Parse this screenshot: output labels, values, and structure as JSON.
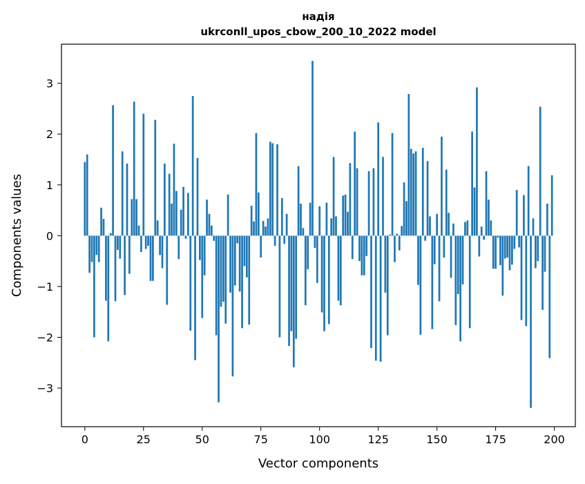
{
  "chart_data": {
    "type": "bar",
    "title_line1": "надія",
    "title_line2": "ukrconll_upos_cbow_200_10_2022 model",
    "xlabel": "Vector components",
    "ylabel": "Components values",
    "xlim": [
      -9.95,
      208.95
    ],
    "ylim": [
      -3.76,
      3.77
    ],
    "xticks": [
      0,
      25,
      50,
      75,
      100,
      125,
      150,
      175,
      200
    ],
    "xtick_labels": [
      "0",
      "25",
      "50",
      "75",
      "100",
      "125",
      "150",
      "175",
      "200"
    ],
    "yticks": [
      -3,
      -2,
      -1,
      0,
      1,
      2,
      3
    ],
    "ytick_labels": [
      "−3",
      "−2",
      "−1",
      "0",
      "1",
      "2",
      "3"
    ],
    "bar_color": "#1f77b4",
    "grid": false,
    "x": [
      0,
      1,
      2,
      3,
      4,
      5,
      6,
      7,
      8,
      9,
      10,
      11,
      12,
      13,
      14,
      15,
      16,
      17,
      18,
      19,
      20,
      21,
      22,
      23,
      24,
      25,
      26,
      27,
      28,
      29,
      30,
      31,
      32,
      33,
      34,
      35,
      36,
      37,
      38,
      39,
      40,
      41,
      42,
      43,
      44,
      45,
      46,
      47,
      48,
      49,
      50,
      51,
      52,
      53,
      54,
      55,
      56,
      57,
      58,
      59,
      60,
      61,
      62,
      63,
      64,
      65,
      66,
      67,
      68,
      69,
      70,
      71,
      72,
      73,
      74,
      75,
      76,
      77,
      78,
      79,
      80,
      81,
      82,
      83,
      84,
      85,
      86,
      87,
      88,
      89,
      90,
      91,
      92,
      93,
      94,
      95,
      96,
      97,
      98,
      99,
      100,
      101,
      102,
      103,
      104,
      105,
      106,
      107,
      108,
      109,
      110,
      111,
      112,
      113,
      114,
      115,
      116,
      117,
      118,
      119,
      120,
      121,
      122,
      123,
      124,
      125,
      126,
      127,
      128,
      129,
      130,
      131,
      132,
      133,
      134,
      135,
      136,
      137,
      138,
      139,
      140,
      141,
      142,
      143,
      144,
      145,
      146,
      147,
      148,
      149,
      150,
      151,
      152,
      153,
      154,
      155,
      156,
      157,
      158,
      159,
      160,
      161,
      162,
      163,
      164,
      165,
      166,
      167,
      168,
      169,
      170,
      171,
      172,
      173,
      174,
      175,
      176,
      177,
      178,
      179,
      180,
      181,
      182,
      183,
      184,
      185,
      186,
      187,
      188,
      189,
      190,
      191,
      192,
      193,
      194,
      195,
      196,
      197,
      198,
      199
    ],
    "values": [
      1.45,
      1.6,
      -0.73,
      -0.52,
      -2.0,
      -0.38,
      -0.52,
      0.55,
      0.33,
      -1.28,
      -2.08,
      0.05,
      2.57,
      -1.29,
      -0.28,
      -0.45,
      1.66,
      -1.17,
      1.42,
      -0.75,
      0.72,
      2.64,
      0.72,
      0.2,
      -0.32,
      2.4,
      -0.26,
      -0.2,
      -0.89,
      -0.89,
      2.28,
      0.3,
      -0.38,
      -0.64,
      1.42,
      -1.36,
      1.22,
      0.63,
      1.81,
      0.88,
      -0.46,
      0.51,
      0.96,
      -0.06,
      0.84,
      -1.87,
      2.75,
      -2.45,
      1.53,
      -0.48,
      -1.62,
      -0.78,
      0.71,
      0.43,
      0.2,
      -0.1,
      -1.96,
      -3.28,
      -1.4,
      -1.3,
      -1.73,
      0.81,
      -1.12,
      -2.77,
      -0.98,
      -0.15,
      -1.1,
      -1.82,
      -0.6,
      -0.82,
      -1.75,
      0.59,
      0.28,
      2.02,
      0.85,
      -0.43,
      0.29,
      0.18,
      0.34,
      1.85,
      1.82,
      -0.2,
      1.8,
      -2.0,
      0.74,
      -0.16,
      0.43,
      -2.17,
      -1.88,
      -2.59,
      -2.03,
      1.37,
      0.63,
      0.15,
      -1.37,
      -0.66,
      0.65,
      3.44,
      -0.24,
      -0.93,
      0.58,
      -1.51,
      -1.88,
      0.65,
      -1.74,
      0.34,
      1.55,
      0.38,
      -1.28,
      -1.37,
      0.79,
      0.81,
      0.47,
      1.43,
      -0.46,
      2.05,
      1.33,
      -0.5,
      -0.78,
      -0.78,
      -0.4,
      1.27,
      -2.21,
      1.33,
      -2.46,
      2.23,
      -2.48,
      1.55,
      -1.12,
      -1.96,
      0.02,
      2.02,
      -0.52,
      0.04,
      -0.29,
      0.19,
      1.05,
      0.68,
      2.79,
      1.71,
      1.62,
      1.66,
      -0.97,
      -1.95,
      1.73,
      -0.1,
      1.47,
      0.38,
      -1.84,
      -0.56,
      0.43,
      -1.29,
      1.95,
      -0.43,
      1.3,
      0.45,
      -0.83,
      0.24,
      -1.76,
      -1.15,
      -2.08,
      -0.96,
      0.27,
      0.3,
      -1.82,
      2.05,
      0.95,
      2.92,
      -0.41,
      0.18,
      -0.08,
      1.27,
      0.71,
      0.3,
      -0.65,
      -0.65,
      -0.04,
      -0.58,
      -1.18,
      -0.45,
      -0.43,
      -0.68,
      -0.57,
      -0.26,
      0.9,
      -0.23,
      -1.66,
      0.8,
      -1.78,
      1.37,
      -3.39,
      0.34,
      -0.64,
      -0.5,
      2.54,
      -1.46,
      -0.71,
      0.63,
      -2.41,
      1.19
    ]
  }
}
